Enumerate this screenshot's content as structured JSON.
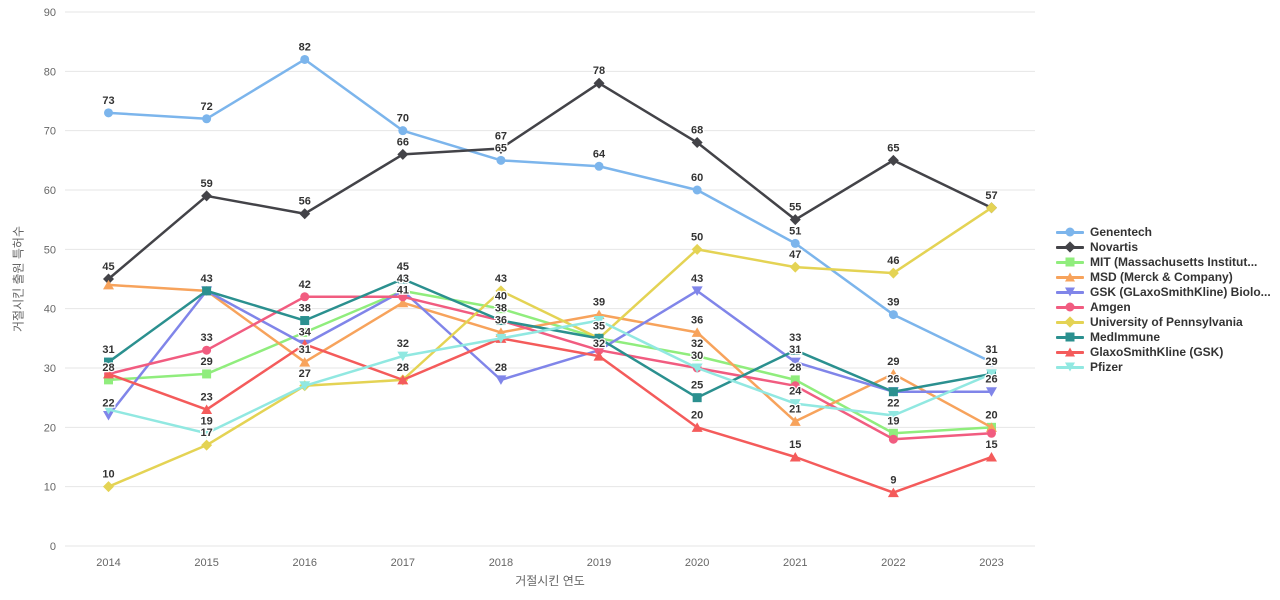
{
  "chart_data": {
    "type": "line",
    "title": "",
    "xlabel": "거절시킨 연도",
    "ylabel": "거절시킨 출원 특허수",
    "x": [
      2014,
      2015,
      2016,
      2017,
      2018,
      2019,
      2020,
      2021,
      2022,
      2023
    ],
    "ylim": [
      0,
      90
    ],
    "yticks": [
      0,
      10,
      20,
      30,
      40,
      50,
      60,
      70,
      80,
      90
    ],
    "grid": "horizontal",
    "legend_position": "right",
    "grid_color": "#e6e6e6",
    "tick_label_color": "#666666",
    "data_label_color": "#333333",
    "series": [
      {
        "name": "Genentech",
        "color": "#7cb5ec",
        "marker": "circle",
        "values": [
          73,
          72,
          82,
          70,
          65,
          64,
          60,
          51,
          39,
          31
        ]
      },
      {
        "name": "Novartis",
        "color": "#434348",
        "marker": "diamond",
        "values": [
          45,
          59,
          56,
          66,
          67,
          78,
          68,
          55,
          65,
          57
        ]
      },
      {
        "name": "MIT (Massachusetts Institut...",
        "color": "#90ed7d",
        "marker": "square",
        "values": [
          28,
          29,
          36,
          43,
          40,
          35,
          32,
          28,
          19,
          20
        ]
      },
      {
        "name": "MSD (Merck & Company)",
        "color": "#f7a35c",
        "marker": "triangle",
        "values": [
          44,
          43,
          31,
          41,
          36,
          39,
          36,
          21,
          29,
          20
        ]
      },
      {
        "name": "GSK (GLaxoSmithKline) Biolo...",
        "color": "#8085e9",
        "marker": "triangle-down",
        "values": [
          22,
          43,
          34,
          43,
          28,
          33,
          43,
          31,
          26,
          26
        ]
      },
      {
        "name": "Amgen",
        "color": "#f15c80",
        "marker": "circle",
        "values": [
          29,
          33,
          42,
          42,
          38,
          33,
          30,
          27,
          18,
          19
        ]
      },
      {
        "name": "University of Pennsylvania",
        "color": "#e4d354",
        "marker": "diamond",
        "values": [
          10,
          17,
          27,
          28,
          43,
          35,
          50,
          47,
          46,
          57
        ]
      },
      {
        "name": "MedImmune",
        "color": "#2b908f",
        "marker": "square",
        "values": [
          31,
          43,
          38,
          45,
          38,
          35,
          25,
          33,
          26,
          29
        ]
      },
      {
        "name": "GlaxoSmithKline (GSK)",
        "color": "#f45b5b",
        "marker": "triangle",
        "values": [
          29,
          23,
          34,
          28,
          35,
          32,
          20,
          15,
          9,
          15
        ]
      },
      {
        "name": "Pfizer",
        "color": "#91e8e1",
        "marker": "triangle-down",
        "values": [
          23,
          19,
          27,
          32,
          35,
          38,
          30,
          24,
          22,
          29
        ]
      }
    ],
    "visible_labels": [
      {
        "xi": 0,
        "si": 0,
        "value": 73
      },
      {
        "xi": 0,
        "si": 1,
        "value": 45
      },
      {
        "xi": 0,
        "si": 7,
        "value": 31
      },
      {
        "xi": 0,
        "si": 2,
        "value": 28
      },
      {
        "xi": 0,
        "si": 4,
        "value": 22
      },
      {
        "xi": 0,
        "si": 6,
        "value": 10
      },
      {
        "xi": 1,
        "si": 0,
        "value": 72
      },
      {
        "xi": 1,
        "si": 1,
        "value": 59
      },
      {
        "xi": 1,
        "si": 4,
        "value": 43
      },
      {
        "xi": 1,
        "si": 5,
        "value": 33
      },
      {
        "xi": 1,
        "si": 2,
        "value": 29
      },
      {
        "xi": 1,
        "si": 8,
        "value": 23
      },
      {
        "xi": 1,
        "si": 9,
        "value": 19
      },
      {
        "xi": 1,
        "si": 6,
        "value": 17
      },
      {
        "xi": 2,
        "si": 0,
        "value": 82
      },
      {
        "xi": 2,
        "si": 1,
        "value": 56
      },
      {
        "xi": 2,
        "si": 5,
        "value": 42
      },
      {
        "xi": 2,
        "si": 7,
        "value": 38
      },
      {
        "xi": 2,
        "si": 4,
        "value": 34
      },
      {
        "xi": 2,
        "si": 3,
        "value": 31
      },
      {
        "xi": 2,
        "si": 9,
        "value": 27
      },
      {
        "xi": 3,
        "si": 0,
        "value": 70
      },
      {
        "xi": 3,
        "si": 1,
        "value": 66
      },
      {
        "xi": 3,
        "si": 7,
        "value": 45
      },
      {
        "xi": 3,
        "si": 2,
        "value": 43
      },
      {
        "xi": 3,
        "si": 3,
        "value": 41
      },
      {
        "xi": 3,
        "si": 9,
        "value": 32
      },
      {
        "xi": 3,
        "si": 8,
        "value": 28
      },
      {
        "xi": 4,
        "si": 1,
        "value": 67
      },
      {
        "xi": 4,
        "si": 0,
        "value": 65
      },
      {
        "xi": 4,
        "si": 6,
        "value": 43
      },
      {
        "xi": 4,
        "si": 2,
        "value": 40
      },
      {
        "xi": 4,
        "si": 7,
        "value": 38
      },
      {
        "xi": 4,
        "si": 3,
        "value": 36
      },
      {
        "xi": 4,
        "si": 4,
        "value": 28
      },
      {
        "xi": 5,
        "si": 1,
        "value": 78
      },
      {
        "xi": 5,
        "si": 0,
        "value": 64
      },
      {
        "xi": 5,
        "si": 3,
        "value": 39
      },
      {
        "xi": 5,
        "si": 6,
        "value": 35
      },
      {
        "xi": 5,
        "si": 8,
        "value": 32
      },
      {
        "xi": 6,
        "si": 1,
        "value": 68
      },
      {
        "xi": 6,
        "si": 0,
        "value": 60
      },
      {
        "xi": 6,
        "si": 6,
        "value": 50
      },
      {
        "xi": 6,
        "si": 4,
        "value": 43
      },
      {
        "xi": 6,
        "si": 3,
        "value": 36
      },
      {
        "xi": 6,
        "si": 2,
        "value": 32
      },
      {
        "xi": 6,
        "si": 5,
        "value": 30
      },
      {
        "xi": 6,
        "si": 7,
        "value": 25
      },
      {
        "xi": 6,
        "si": 8,
        "value": 20
      },
      {
        "xi": 7,
        "si": 1,
        "value": 55
      },
      {
        "xi": 7,
        "si": 0,
        "value": 51
      },
      {
        "xi": 7,
        "si": 6,
        "value": 47
      },
      {
        "xi": 7,
        "si": 7,
        "value": 33
      },
      {
        "xi": 7,
        "si": 4,
        "value": 31
      },
      {
        "xi": 7,
        "si": 2,
        "value": 28
      },
      {
        "xi": 7,
        "si": 9,
        "value": 24
      },
      {
        "xi": 7,
        "si": 3,
        "value": 21
      },
      {
        "xi": 7,
        "si": 8,
        "value": 15
      },
      {
        "xi": 8,
        "si": 1,
        "value": 65
      },
      {
        "xi": 8,
        "si": 6,
        "value": 46
      },
      {
        "xi": 8,
        "si": 0,
        "value": 39
      },
      {
        "xi": 8,
        "si": 3,
        "value": 29
      },
      {
        "xi": 8,
        "si": 7,
        "value": 26
      },
      {
        "xi": 8,
        "si": 9,
        "value": 22
      },
      {
        "xi": 8,
        "si": 2,
        "value": 19
      },
      {
        "xi": 8,
        "si": 8,
        "value": 9
      },
      {
        "xi": 9,
        "si": 6,
        "value": 57
      },
      {
        "xi": 9,
        "si": 0,
        "value": 31
      },
      {
        "xi": 9,
        "si": 7,
        "value": 29
      },
      {
        "xi": 9,
        "si": 4,
        "value": 26
      },
      {
        "xi": 9,
        "si": 3,
        "value": 20
      },
      {
        "xi": 9,
        "si": 8,
        "value": 15
      }
    ]
  }
}
